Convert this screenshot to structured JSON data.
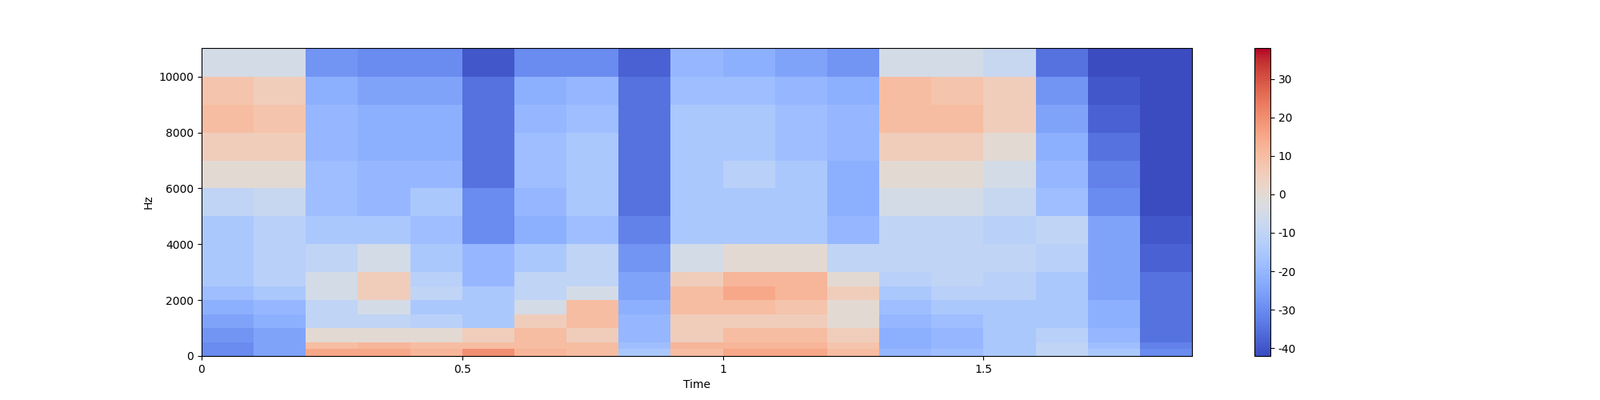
{
  "chart_data": {
    "type": "heatmap",
    "x_label": "Time",
    "y_label": "Hz",
    "xlim": [
      0,
      1.9
    ],
    "xticks": [
      0,
      0.5,
      1,
      1.5
    ],
    "ylim": [
      0,
      11025
    ],
    "yticks": [
      0,
      2000,
      4000,
      6000,
      8000,
      10000
    ],
    "x_edges": [
      0,
      0.1,
      0.2,
      0.3,
      0.4,
      0.5,
      0.6,
      0.7,
      0.8,
      0.9,
      1.0,
      1.1,
      1.2,
      1.3,
      1.4,
      1.5,
      1.6,
      1.7,
      1.8,
      1.9
    ],
    "y_edges": [
      0,
      250,
      500,
      1000,
      1500,
      2000,
      2500,
      3000,
      4000,
      5000,
      6000,
      7000,
      8000,
      9000,
      10000,
      11025
    ],
    "cells": [
      [
        -30,
        -25,
        15,
        15,
        12,
        20,
        12,
        10,
        -15,
        10,
        15,
        15,
        10,
        -20,
        -18,
        -15,
        -10,
        -15,
        -30
      ],
      [
        -30,
        -25,
        10,
        12,
        10,
        10,
        10,
        10,
        -18,
        12,
        12,
        12,
        8,
        -22,
        -20,
        -15,
        -10,
        -18,
        -32
      ],
      [
        -28,
        -25,
        0,
        0,
        0,
        5,
        10,
        5,
        -20,
        5,
        10,
        10,
        5,
        -22,
        -20,
        -15,
        -12,
        -20,
        -35
      ],
      [
        -25,
        -22,
        -10,
        -10,
        -12,
        -15,
        5,
        10,
        -20,
        5,
        5,
        5,
        0,
        -20,
        -18,
        -15,
        -15,
        -22,
        -35
      ],
      [
        -22,
        -20,
        -10,
        -5,
        -15,
        -15,
        -5,
        10,
        -22,
        10,
        10,
        8,
        0,
        -18,
        -15,
        -15,
        -15,
        -22,
        -35
      ],
      [
        -18,
        -15,
        -5,
        5,
        -10,
        -15,
        -10,
        -5,
        -25,
        10,
        15,
        12,
        5,
        -15,
        -12,
        -12,
        -15,
        -25,
        -35
      ],
      [
        -15,
        -12,
        -5,
        5,
        -12,
        -20,
        -10,
        -10,
        -25,
        5,
        12,
        12,
        0,
        -12,
        -10,
        -12,
        -15,
        -25,
        -35
      ],
      [
        -15,
        -12,
        -10,
        -5,
        -15,
        -20,
        -15,
        -10,
        -28,
        -5,
        0,
        0,
        -10,
        -10,
        -10,
        -10,
        -12,
        -25,
        -38
      ],
      [
        -15,
        -12,
        -15,
        -15,
        -18,
        -30,
        -22,
        -18,
        -32,
        -15,
        -15,
        -15,
        -20,
        -10,
        -10,
        -12,
        -10,
        -25,
        -40
      ],
      [
        -10,
        -8,
        -18,
        -20,
        -15,
        -30,
        -20,
        -15,
        -35,
        -15,
        -15,
        -15,
        -22,
        -5,
        -5,
        -8,
        -18,
        -30,
        -42
      ],
      [
        0,
        0,
        -18,
        -20,
        -20,
        -35,
        -18,
        -15,
        -35,
        -15,
        -12,
        -15,
        -22,
        0,
        0,
        -5,
        -20,
        -32,
        -42
      ],
      [
        5,
        5,
        -20,
        -22,
        -22,
        -35,
        -18,
        -15,
        -35,
        -15,
        -15,
        -18,
        -20,
        5,
        5,
        0,
        -22,
        -35,
        -42
      ],
      [
        10,
        8,
        -20,
        -22,
        -22,
        -35,
        -20,
        -18,
        -35,
        -15,
        -15,
        -18,
        -20,
        10,
        10,
        5,
        -25,
        -38,
        -42
      ],
      [
        8,
        5,
        -22,
        -25,
        -25,
        -35,
        -22,
        -20,
        -35,
        -18,
        -18,
        -20,
        -22,
        10,
        8,
        5,
        -28,
        -40,
        -42
      ],
      [
        -5,
        -5,
        -28,
        -30,
        -30,
        -40,
        -30,
        -30,
        -38,
        -20,
        -22,
        -25,
        -28,
        -5,
        -5,
        -8,
        -35,
        -42,
        -42
      ]
    ],
    "colorbar_range": [
      -42,
      38
    ],
    "colorbar_ticks": [
      -40,
      -30,
      -20,
      -10,
      0,
      10,
      20,
      30
    ]
  }
}
